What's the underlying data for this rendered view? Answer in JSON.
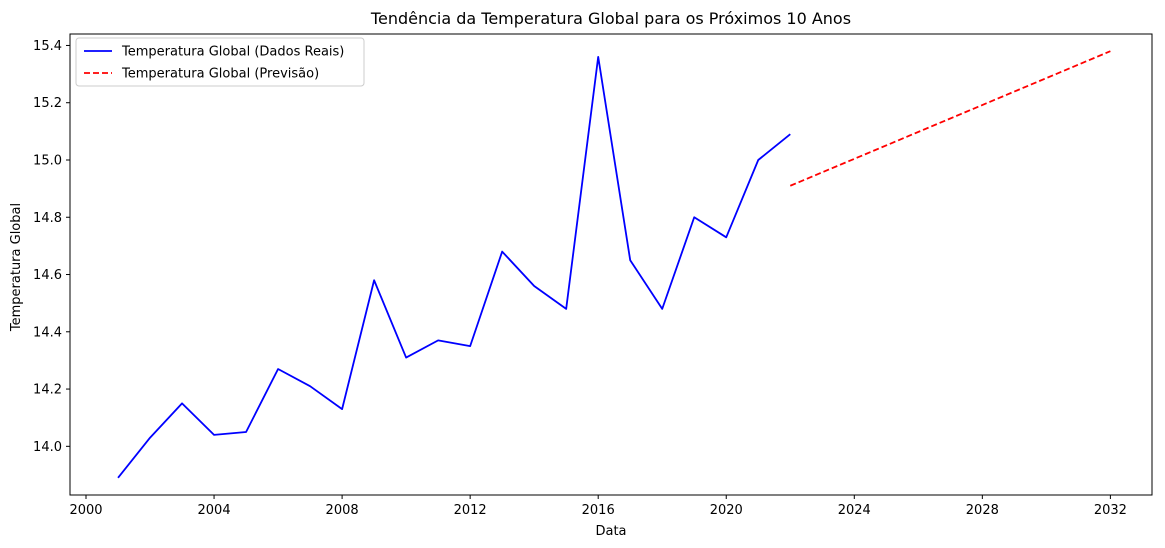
{
  "chart_data": {
    "type": "line",
    "title": "Tendência da Temperatura Global para os Próximos 10 Anos",
    "xlabel": "Data",
    "ylabel": "Temperatura Global",
    "xlim": [
      1999.5,
      2033.3
    ],
    "ylim": [
      13.83,
      15.44
    ],
    "x_ticks": [
      2000,
      2004,
      2008,
      2012,
      2016,
      2020,
      2024,
      2028,
      2032
    ],
    "y_ticks": [
      14.0,
      14.2,
      14.4,
      14.6,
      14.8,
      15.0,
      15.2,
      15.4
    ],
    "y_tick_labels": [
      "14.0",
      "14.2",
      "14.4",
      "14.6",
      "14.8",
      "15.0",
      "15.2",
      "15.4"
    ],
    "grid": false,
    "legend_position": "top-left",
    "series": [
      {
        "name": "Temperatura Global (Dados Reais)",
        "color": "#0000ff",
        "style": "solid",
        "x": [
          2001,
          2002,
          2003,
          2004,
          2005,
          2006,
          2007,
          2008,
          2009,
          2010,
          2011,
          2012,
          2013,
          2014,
          2015,
          2016,
          2017,
          2018,
          2019,
          2020,
          2021,
          2022
        ],
        "y": [
          13.89,
          14.03,
          14.15,
          14.04,
          14.05,
          14.27,
          14.21,
          14.13,
          14.58,
          14.31,
          14.37,
          14.35,
          14.68,
          14.56,
          14.48,
          15.36,
          14.65,
          14.48,
          14.8,
          14.73,
          15.0,
          15.09
        ]
      },
      {
        "name": "Temperatura Global (Previsão)",
        "color": "#ff0000",
        "style": "dashed",
        "x": [
          2022,
          2032
        ],
        "y": [
          14.91,
          15.38
        ]
      }
    ]
  }
}
